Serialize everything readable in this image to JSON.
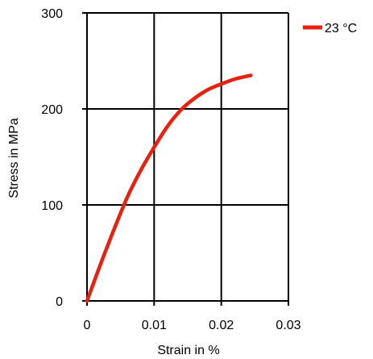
{
  "chart_data": {
    "type": "line",
    "title": "",
    "xlabel": "Strain in %",
    "ylabel": "Stress in MPa",
    "xlim": [
      0,
      0.03
    ],
    "ylim": [
      0,
      300
    ],
    "x_ticks": [
      0,
      0.01,
      0.02,
      0.03
    ],
    "x_tick_labels": [
      "0",
      "0.01",
      "0.02",
      "0.03"
    ],
    "y_ticks": [
      0,
      100,
      200,
      300
    ],
    "y_tick_labels": [
      "0",
      "100",
      "200",
      "300"
    ],
    "grid": true,
    "legend_position": "top-right, outside plot",
    "series": [
      {
        "name": "23 °C",
        "color": "#e8210e",
        "x": [
          0,
          0.002,
          0.004,
          0.006,
          0.008,
          0.01,
          0.012,
          0.014,
          0.016,
          0.018,
          0.02,
          0.022,
          0.0244
        ],
        "y": [
          0,
          38,
          74,
          108,
          136,
          160,
          182,
          199,
          211,
          220,
          226,
          231,
          235
        ]
      }
    ]
  }
}
